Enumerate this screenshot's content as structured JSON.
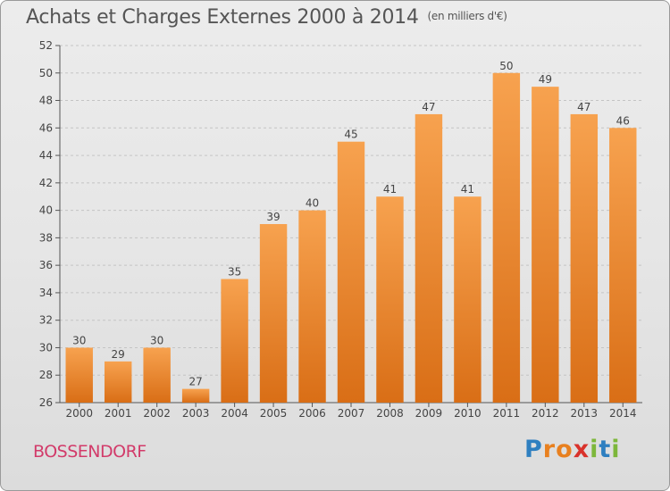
{
  "header": {
    "title": "Achats et Charges Externes 2000 à 2014",
    "subtitle": "(en milliers d'€)"
  },
  "footer": {
    "commune": "BOSSENDORF",
    "logo_text": "Proxiti",
    "logo_letters": [
      {
        "ch": "P",
        "color": "#2e7fc0"
      },
      {
        "ch": "r",
        "color": "#e8801f"
      },
      {
        "ch": "o",
        "color": "#e8801f"
      },
      {
        "ch": "x",
        "color": "#d9322b"
      },
      {
        "ch": "i",
        "color": "#7db73b"
      },
      {
        "ch": "t",
        "color": "#2e7fc0"
      },
      {
        "ch": "i",
        "color": "#7db73b"
      }
    ]
  },
  "chart_data": {
    "type": "bar",
    "title": "Achats et Charges Externes 2000 à 2014",
    "subtitle": "(en milliers d'€)",
    "categories": [
      "2000",
      "2001",
      "2002",
      "2003",
      "2004",
      "2005",
      "2006",
      "2007",
      "2008",
      "2009",
      "2010",
      "2011",
      "2012",
      "2013",
      "2014"
    ],
    "values": [
      30,
      29,
      30,
      27,
      35,
      39,
      40,
      45,
      41,
      47,
      41,
      50,
      49,
      47,
      46
    ],
    "ylim": [
      26,
      52
    ],
    "yticks": [
      26,
      28,
      30,
      32,
      34,
      36,
      38,
      40,
      42,
      44,
      46,
      48,
      50,
      52
    ],
    "grid": true,
    "legend": "none",
    "colors": {
      "bar_top": "#f7a24f",
      "bar_bottom": "#d96e16",
      "grid": "#c4c4c4",
      "text": "#444444"
    }
  }
}
